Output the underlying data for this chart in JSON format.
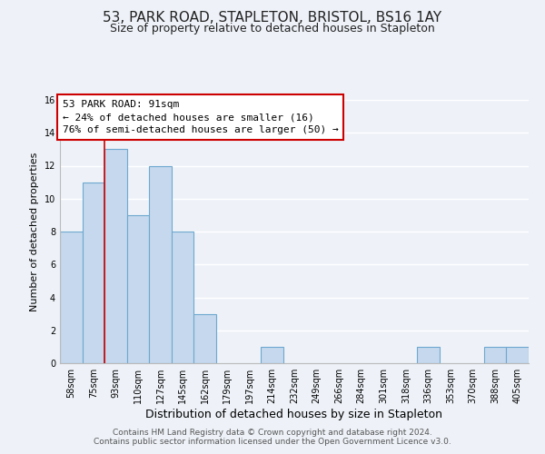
{
  "title": "53, PARK ROAD, STAPLETON, BRISTOL, BS16 1AY",
  "subtitle": "Size of property relative to detached houses in Stapleton",
  "xlabel": "Distribution of detached houses by size in Stapleton",
  "ylabel": "Number of detached properties",
  "bin_labels": [
    "58sqm",
    "75sqm",
    "93sqm",
    "110sqm",
    "127sqm",
    "145sqm",
    "162sqm",
    "179sqm",
    "197sqm",
    "214sqm",
    "232sqm",
    "249sqm",
    "266sqm",
    "284sqm",
    "301sqm",
    "318sqm",
    "336sqm",
    "353sqm",
    "370sqm",
    "388sqm",
    "405sqm"
  ],
  "bar_heights": [
    8,
    11,
    13,
    9,
    12,
    8,
    3,
    0,
    0,
    1,
    0,
    0,
    0,
    0,
    0,
    0,
    1,
    0,
    0,
    1,
    1
  ],
  "bar_color": "#c5d8ed",
  "bar_edge_color": "#6ea8d0",
  "background_color": "#eef2f8",
  "grid_color": "#ffffff",
  "annotation_line1": "53 PARK ROAD: 91sqm",
  "annotation_line2": "← 24% of detached houses are smaller (16)",
  "annotation_line3": "76% of semi-detached houses are larger (50) →",
  "annotation_box_color": "#ffffff",
  "annotation_box_edge_color": "#cc0000",
  "red_line_x": 1.5,
  "red_line_color": "#cc0000",
  "ylim": [
    0,
    16
  ],
  "yticks": [
    0,
    2,
    4,
    6,
    8,
    10,
    12,
    14,
    16
  ],
  "footer_line1": "Contains HM Land Registry data © Crown copyright and database right 2024.",
  "footer_line2": "Contains public sector information licensed under the Open Government Licence v3.0.",
  "title_fontsize": 11,
  "subtitle_fontsize": 9,
  "xlabel_fontsize": 9,
  "ylabel_fontsize": 8,
  "tick_fontsize": 7,
  "annotation_fontsize": 8,
  "footer_fontsize": 6.5
}
